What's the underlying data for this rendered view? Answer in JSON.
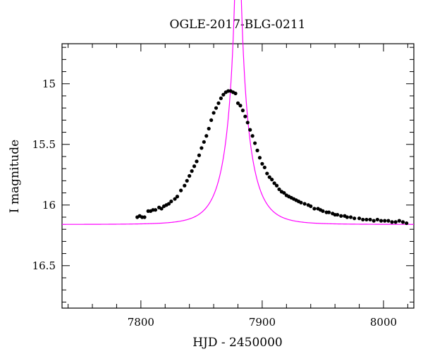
{
  "chart_data": {
    "type": "scatter",
    "title": "OGLE-2017-BLG-0211",
    "xlabel": "HJD - 2450000",
    "ylabel": "I magnitude",
    "xlim": [
      7735,
      8025
    ],
    "ylim": [
      16.85,
      14.67
    ],
    "y_inverted": true,
    "x_ticks": [
      7800,
      7900,
      8000
    ],
    "y_ticks": [
      15,
      15.5,
      16,
      16.5
    ],
    "grid": false,
    "colors": {
      "points": "#000000",
      "model": "#ff00ff"
    },
    "model": {
      "name": "",
      "t0": 7880,
      "u0": 0.05,
      "tE": 19,
      "fs": 0.82,
      "i_base": 16.16
    },
    "series": [
      {
        "type": "scatter",
        "x": [
          7797,
          7799,
          7801,
          7803,
          7806,
          7808,
          7810,
          7812,
          7815,
          7817,
          7819,
          7821,
          7823,
          7825,
          7828,
          7830,
          7833,
          7836,
          7838,
          7840,
          7842,
          7844,
          7846,
          7848,
          7850,
          7852,
          7854,
          7856,
          7858,
          7860,
          7862,
          7864,
          7866,
          7868,
          7870,
          7872,
          7874,
          7876,
          7878,
          7880,
          7882,
          7884,
          7886,
          7888,
          7890,
          7892,
          7894,
          7896,
          7898,
          7900,
          7902,
          7904,
          7906,
          7908,
          7910,
          7912,
          7914,
          7916,
          7918,
          7920,
          7922,
          7924,
          7926,
          7928,
          7930,
          7932,
          7935,
          7938,
          7940,
          7943,
          7946,
          7948,
          7950,
          7953,
          7955,
          7958,
          7960,
          7962,
          7965,
          7968,
          7970,
          7973,
          7976,
          7980,
          7983,
          7986,
          7989,
          7992,
          7995,
          7998,
          8001,
          8004,
          8007,
          8010,
          8013,
          8016,
          8019
        ],
        "y": [
          16.1,
          16.09,
          16.1,
          16.1,
          16.05,
          16.05,
          16.04,
          16.04,
          16.02,
          16.03,
          16.01,
          16.0,
          15.99,
          15.97,
          15.95,
          15.93,
          15.88,
          15.84,
          15.8,
          15.76,
          15.72,
          15.68,
          15.64,
          15.59,
          15.53,
          15.48,
          15.43,
          15.37,
          15.3,
          15.24,
          15.2,
          15.16,
          15.12,
          15.09,
          15.07,
          15.06,
          15.06,
          15.07,
          15.08,
          15.16,
          15.18,
          15.22,
          15.27,
          15.32,
          15.38,
          15.43,
          15.49,
          15.55,
          15.61,
          15.66,
          15.69,
          15.74,
          15.77,
          15.79,
          15.82,
          15.84,
          15.87,
          15.89,
          15.9,
          15.92,
          15.93,
          15.94,
          15.95,
          15.96,
          15.97,
          15.98,
          15.99,
          16.0,
          16.01,
          16.03,
          16.03,
          16.04,
          16.05,
          16.06,
          16.06,
          16.07,
          16.08,
          16.08,
          16.09,
          16.09,
          16.1,
          16.1,
          16.11,
          16.11,
          16.12,
          16.12,
          16.12,
          16.13,
          16.12,
          16.13,
          16.13,
          16.13,
          16.14,
          16.14,
          16.13,
          16.14,
          16.15
        ]
      }
    ]
  }
}
